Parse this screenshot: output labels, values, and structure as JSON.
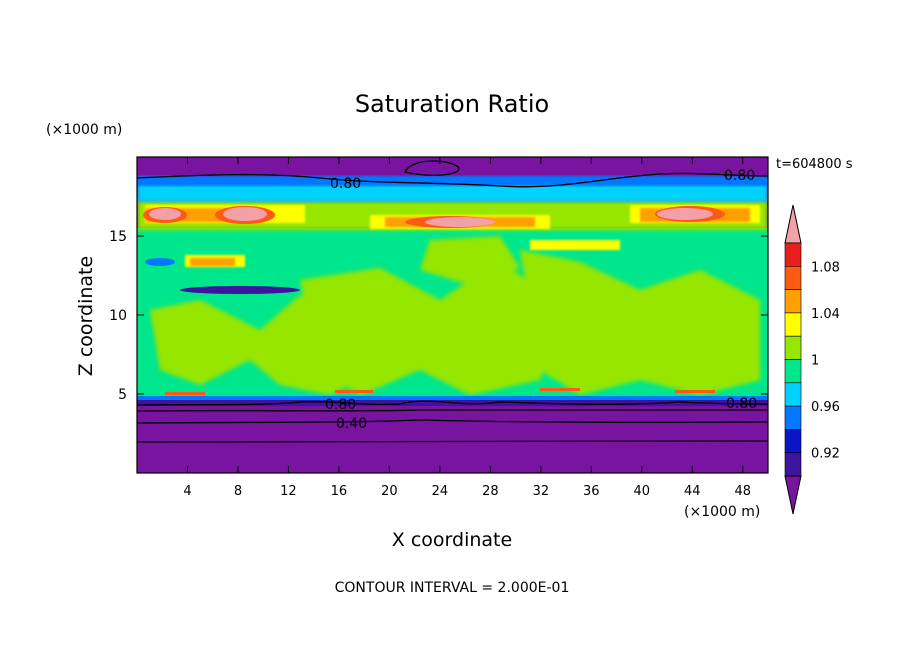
{
  "chart_data": {
    "type": "heatmap",
    "title": "Saturation Ratio",
    "xlabel": "X coordinate",
    "ylabel": "Z coordinate",
    "x_unit": "(×1000 m)",
    "y_unit": "(×1000 m)",
    "time_label": "t=604800 s",
    "footer": "CONTOUR INTERVAL = 2.000E-01",
    "xlim": [
      0,
      50
    ],
    "ylim": [
      0,
      20
    ],
    "x_ticks": [
      "4",
      "8",
      "12",
      "16",
      "20",
      "24",
      "28",
      "32",
      "36",
      "40",
      "44",
      "48"
    ],
    "y_ticks": [
      "5",
      "10",
      "15"
    ],
    "colorbar": {
      "tick_labels": [
        "1.08",
        "1.04",
        "1",
        "0.96",
        "0.92"
      ],
      "levels": [
        {
          "range": ">1.10",
          "color": "#f4a0a8"
        },
        {
          "range": "1.08-1.10",
          "color": "#e8201c"
        },
        {
          "range": "1.06-1.08",
          "color": "#ff5a14"
        },
        {
          "range": "1.04-1.06",
          "color": "#ffa000"
        },
        {
          "range": "1.02-1.04",
          "color": "#ffff00"
        },
        {
          "range": "1.00-1.02",
          "color": "#96e600"
        },
        {
          "range": "0.98-1.00",
          "color": "#00e68c"
        },
        {
          "range": "0.96-0.98",
          "color": "#00d2ff"
        },
        {
          "range": "0.94-0.96",
          "color": "#0078ff"
        },
        {
          "range": "0.92-0.94",
          "color": "#0a14c8"
        },
        {
          "range": "0.90-0.92",
          "color": "#3c14a0"
        },
        {
          "range": "<0.90",
          "color": "#7814a0"
        }
      ]
    },
    "contour_labels": [
      "0.80",
      "0.80",
      "0.80",
      "0.80",
      "0.40"
    ]
  }
}
